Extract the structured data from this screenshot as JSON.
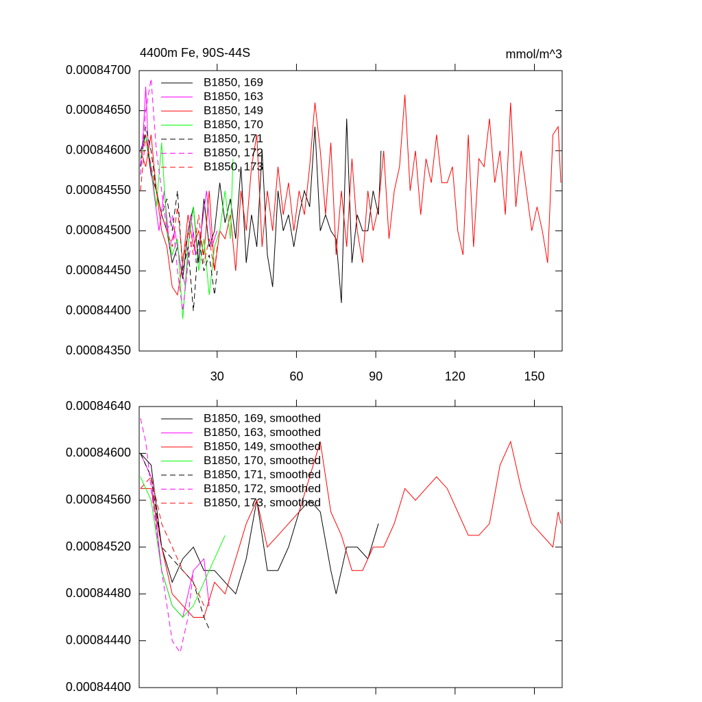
{
  "chart_data": [
    {
      "type": "line",
      "title": "4400m Fe, 90S-44S",
      "units": "mmol/m^3",
      "xlim": [
        0.5,
        160.5
      ],
      "xticks": [
        30,
        60,
        90,
        120,
        150
      ],
      "xtick_labels": true,
      "ylim": [
        0.0008435,
        0.000847
      ],
      "yticks": [
        {
          "value": 0.0008435,
          "label": "0.00084350"
        },
        {
          "value": 0.000844,
          "label": "0.00084400"
        },
        {
          "value": 0.0008445,
          "label": "0.00084450"
        },
        {
          "value": 0.000845,
          "label": "0.00084500"
        },
        {
          "value": 0.0008455,
          "label": "0.00084550"
        },
        {
          "value": 0.000846,
          "label": "0.00084600"
        },
        {
          "value": 0.0008465,
          "label": "0.00084650"
        },
        {
          "value": 0.000847,
          "label": "0.00084700"
        }
      ],
      "series": [
        {
          "name": "B1850, 169",
          "color": "#000000",
          "dash": false,
          "x": [
            1,
            3,
            5,
            7,
            9,
            11,
            13,
            15,
            17,
            19,
            21,
            23,
            25,
            27,
            29,
            31,
            33,
            35,
            37,
            39,
            41,
            43,
            45,
            47,
            49,
            51,
            53,
            55,
            57,
            59,
            61,
            63,
            65,
            67,
            69,
            71,
            73,
            75,
            77,
            79,
            81,
            83,
            85,
            87,
            89,
            91,
            92
          ],
          "values": [
            0.000846,
            0.0008462,
            0.0008457,
            0.0008455,
            0.0008452,
            0.000845,
            0.0008446,
            0.0008448,
            0.0008444,
            0.000845,
            0.0008453,
            0.0008446,
            0.0008454,
            0.0008448,
            0.000845,
            0.0008456,
            0.0008451,
            0.0008454,
            0.0008449,
            0.0008458,
            0.0008446,
            0.0008452,
            0.0008448,
            0.000846,
            0.0008447,
            0.0008443,
            0.0008455,
            0.000845,
            0.0008452,
            0.0008448,
            0.0008452,
            0.0008455,
            0.0008453,
            0.0008463,
            0.000845,
            0.0008452,
            0.000845,
            0.0008449,
            0.0008441,
            0.0008464,
            0.0008446,
            0.0008452,
            0.000845,
            0.000845,
            0.0008455,
            0.0008452,
            0.000846
          ]
        },
        {
          "name": "B1850, 163",
          "color": "#ff00ff",
          "dash": false,
          "x": [
            1,
            2,
            3,
            4,
            6,
            8,
            10,
            12,
            14,
            16,
            18,
            20,
            22,
            24,
            26,
            28,
            30
          ],
          "values": [
            0.0008458,
            0.0008462,
            0.0008468,
            0.000846,
            0.0008455,
            0.000845,
            0.0008455,
            0.0008448,
            0.000845,
            0.0008446,
            0.0008443,
            0.0008452,
            0.0008447,
            0.000845,
            0.0008455,
            0.0008448,
            0.000845
          ]
        },
        {
          "name": "B1850, 149",
          "color": "#ff0000",
          "dash": false,
          "x": [
            1,
            3,
            5,
            7,
            9,
            11,
            13,
            15,
            17,
            19,
            21,
            23,
            25,
            27,
            29,
            31,
            33,
            35,
            37,
            39,
            41,
            43,
            45,
            47,
            49,
            51,
            53,
            55,
            57,
            59,
            61,
            63,
            65,
            67,
            69,
            71,
            73,
            75,
            77,
            79,
            81,
            83,
            85,
            87,
            89,
            91,
            93,
            95,
            97,
            99,
            101,
            103,
            105,
            107,
            109,
            111,
            113,
            115,
            117,
            119,
            121,
            123,
            125,
            127,
            129,
            131,
            133,
            135,
            137,
            139,
            141,
            143,
            145,
            147,
            149,
            151,
            153,
            155,
            157,
            159,
            160
          ],
          "values": [
            0.000846,
            0.0008458,
            0.0008462,
            0.0008455,
            0.000845,
            0.0008448,
            0.0008443,
            0.0008442,
            0.0008446,
            0.0008452,
            0.0008448,
            0.000845,
            0.0008447,
            0.0008455,
            0.0008445,
            0.000845,
            0.0008449,
            0.0008452,
            0.0008445,
            0.0008455,
            0.000845,
            0.0008458,
            0.0008462,
            0.0008448,
            0.0008455,
            0.000845,
            0.0008458,
            0.0008452,
            0.0008456,
            0.000845,
            0.0008455,
            0.0008452,
            0.0008458,
            0.0008466,
            0.000846,
            0.0008452,
            0.0008461,
            0.0008447,
            0.0008455,
            0.0008448,
            0.0008459,
            0.000845,
            0.0008446,
            0.0008455,
            0.000845,
            0.0008453,
            0.000846,
            0.0008449,
            0.0008455,
            0.0008458,
            0.0008467,
            0.0008455,
            0.000846,
            0.0008452,
            0.0008459,
            0.0008456,
            0.0008462,
            0.0008456,
            0.0008456,
            0.0008458,
            0.000845,
            0.0008447,
            0.0008462,
            0.0008448,
            0.0008459,
            0.0008458,
            0.0008464,
            0.0008456,
            0.000846,
            0.0008452,
            0.0008466,
            0.0008453,
            0.000846,
            0.0008455,
            0.000845,
            0.0008453,
            0.000845,
            0.0008446,
            0.0008462,
            0.0008463,
            0.0008456
          ]
        },
        {
          "name": "B1850, 170",
          "color": "#00ff00",
          "dash": false,
          "x": [
            1,
            3,
            5,
            7,
            9,
            11,
            13,
            15,
            17,
            19,
            21,
            23,
            25,
            27,
            29,
            31,
            33,
            35,
            36
          ],
          "values": [
            0.0008459,
            0.0008462,
            0.0008458,
            0.0008453,
            0.0008461,
            0.000845,
            0.0008447,
            0.0008449,
            0.0008439,
            0.0008448,
            0.0008453,
            0.0008445,
            0.0008449,
            0.0008442,
            0.0008448,
            0.000845,
            0.0008455,
            0.0008449,
            0.0008459
          ]
        },
        {
          "name": "B1850, 171",
          "color": "#000000",
          "dash": true,
          "x": [
            1,
            3,
            5,
            7,
            9,
            11,
            13,
            15,
            17,
            19,
            21,
            23,
            25,
            27,
            29,
            30
          ],
          "values": [
            0.0008458,
            0.0008463,
            0.000846,
            0.0008455,
            0.0008452,
            0.0008454,
            0.000845,
            0.0008455,
            0.0008445,
            0.0008448,
            0.000844,
            0.0008449,
            0.0008445,
            0.0008447,
            0.0008442,
            0.0008445
          ]
        },
        {
          "name": "B1850, 172",
          "color": "#ff00ff",
          "dash": true,
          "x": [
            1,
            3,
            5,
            7,
            9,
            11,
            13,
            15,
            17,
            19,
            21,
            22
          ],
          "values": [
            0.0008457,
            0.0008465,
            0.0008469,
            0.000846,
            0.0008455,
            0.000845,
            0.0008452,
            0.0008445,
            0.000844,
            0.0008446,
            0.000845,
            0.0008446
          ]
        },
        {
          "name": "B1850, 173",
          "color": "#ff0000",
          "dash": true,
          "x": [
            1,
            3,
            5,
            7,
            9,
            11,
            13,
            15,
            17,
            19,
            21,
            23,
            25,
            27,
            29,
            30
          ],
          "values": [
            0.0008455,
            0.0008462,
            0.0008458,
            0.0008455,
            0.0008452,
            0.000845,
            0.0008448,
            0.0008453,
            0.0008446,
            0.000845,
            0.0008447,
            0.0008452,
            0.0008446,
            0.0008449,
            0.0008445,
            0.0008448
          ]
        }
      ]
    },
    {
      "type": "line",
      "xlim": [
        0.5,
        160.5
      ],
      "xticks": [
        30,
        60,
        90,
        120,
        150
      ],
      "xtick_labels": false,
      "ylim": [
        0.000844,
        0.0008464
      ],
      "yticks": [
        {
          "value": 0.000844,
          "label": "0.00084400"
        },
        {
          "value": 0.0008444,
          "label": "0.00084440"
        },
        {
          "value": 0.0008448,
          "label": "0.00084480"
        },
        {
          "value": 0.0008452,
          "label": "0.00084520"
        },
        {
          "value": 0.0008456,
          "label": "0.00084560"
        },
        {
          "value": 0.000846,
          "label": "0.00084600"
        },
        {
          "value": 0.0008464,
          "label": "0.00084640"
        }
      ],
      "series": [
        {
          "name": "B1850, 169, smoothed",
          "color": "#000000",
          "dash": false,
          "x": [
            1,
            5,
            9,
            13,
            17,
            21,
            25,
            29,
            33,
            37,
            41,
            45,
            49,
            53,
            57,
            61,
            65,
            69,
            73,
            75,
            79,
            83,
            87,
            91
          ],
          "values": [
            0.000846,
            0.0008459,
            0.0008452,
            0.0008449,
            0.0008451,
            0.0008452,
            0.000845,
            0.000845,
            0.0008449,
            0.0008448,
            0.0008451,
            0.0008456,
            0.000845,
            0.000845,
            0.0008452,
            0.0008455,
            0.0008456,
            0.0008455,
            0.000845,
            0.0008448,
            0.0008452,
            0.0008452,
            0.0008451,
            0.0008454
          ]
        },
        {
          "name": "B1850, 163, smoothed",
          "color": "#ff00ff",
          "dash": false,
          "x": [
            1,
            5,
            9,
            13,
            17,
            21,
            25,
            27
          ],
          "values": [
            0.000846,
            0.0008458,
            0.000845,
            0.0008447,
            0.0008446,
            0.000845,
            0.0008451,
            0.0008447
          ]
        },
        {
          "name": "B1850, 149, smoothed",
          "color": "#ff0000",
          "dash": false,
          "x": [
            1,
            5,
            9,
            13,
            17,
            21,
            25,
            29,
            33,
            37,
            41,
            45,
            49,
            53,
            57,
            61,
            65,
            69,
            73,
            77,
            81,
            85,
            89,
            93,
            97,
            101,
            105,
            109,
            113,
            117,
            121,
            125,
            129,
            133,
            137,
            141,
            145,
            149,
            153,
            157,
            159,
            160
          ],
          "values": [
            0.0008457,
            0.0008457,
            0.0008452,
            0.0008448,
            0.0008447,
            0.0008446,
            0.0008446,
            0.0008449,
            0.0008448,
            0.0008451,
            0.0008454,
            0.0008456,
            0.0008452,
            0.0008453,
            0.0008454,
            0.0008455,
            0.0008458,
            0.0008461,
            0.0008455,
            0.0008453,
            0.000845,
            0.000845,
            0.0008452,
            0.0008452,
            0.0008454,
            0.0008457,
            0.0008456,
            0.0008457,
            0.0008458,
            0.0008457,
            0.0008455,
            0.0008453,
            0.0008453,
            0.0008454,
            0.0008459,
            0.0008461,
            0.0008457,
            0.0008454,
            0.0008453,
            0.0008452,
            0.0008455,
            0.0008454
          ]
        },
        {
          "name": "B1850, 170, smoothed",
          "color": "#00ff00",
          "dash": false,
          "x": [
            1,
            5,
            9,
            13,
            17,
            21,
            25,
            29,
            33
          ],
          "values": [
            0.0008458,
            0.0008456,
            0.000845,
            0.0008447,
            0.0008446,
            0.0008447,
            0.0008449,
            0.0008451,
            0.0008453
          ]
        },
        {
          "name": "B1850, 171, smoothed",
          "color": "#000000",
          "dash": true,
          "x": [
            1,
            5,
            9,
            13,
            17,
            21,
            25,
            27
          ],
          "values": [
            0.000846,
            0.0008458,
            0.0008452,
            0.0008451,
            0.000845,
            0.0008449,
            0.0008446,
            0.0008445
          ]
        },
        {
          "name": "B1850, 172, smoothed",
          "color": "#ff00ff",
          "dash": true,
          "x": [
            1,
            3,
            5,
            9,
            13,
            16,
            19,
            21
          ],
          "values": [
            0.0008463,
            0.0008461,
            0.0008457,
            0.000845,
            0.0008444,
            0.0008443,
            0.0008446,
            0.000845
          ]
        },
        {
          "name": "B1850, 173, smoothed",
          "color": "#ff0000",
          "dash": true,
          "x": [
            1,
            5,
            9,
            13,
            17,
            21,
            25,
            27
          ],
          "values": [
            0.0008457,
            0.0008458,
            0.0008454,
            0.0008452,
            0.000845,
            0.0008449,
            0.0008447,
            0.0008447
          ]
        }
      ]
    }
  ]
}
